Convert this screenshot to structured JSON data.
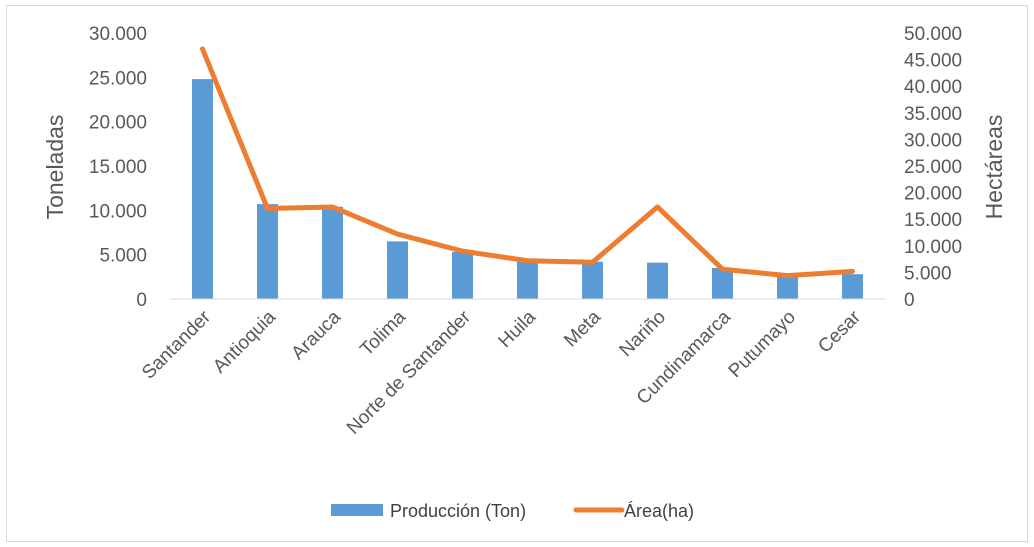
{
  "chart_data": {
    "type": "bar",
    "title": "",
    "categories": [
      "Santander",
      "Antioquia",
      "Arauca",
      "Tolima",
      "Norte de Santander",
      "Huila",
      "Meta",
      "Nariño",
      "Cundinamarca",
      "Putumayo",
      "Cesar"
    ],
    "series": [
      {
        "name": "Producción (Ton)",
        "type": "bar",
        "axis": "left",
        "color": "#5b9bd5",
        "values": [
          24800,
          10700,
          10400,
          6500,
          5300,
          4400,
          4200,
          4100,
          3500,
          2700,
          2800
        ]
      },
      {
        "name": "Área(ha)",
        "type": "line",
        "axis": "right",
        "color": "#ed7d31",
        "values": [
          47000,
          17000,
          17300,
          12200,
          9000,
          7200,
          6900,
          17300,
          5600,
          4400,
          5200
        ]
      }
    ],
    "y_left": {
      "label": "Toneladas",
      "ylim": [
        0,
        30000
      ],
      "ticks": [
        0,
        5000,
        10000,
        15000,
        20000,
        25000,
        30000
      ],
      "tick_labels": [
        "0",
        "5.000",
        "10.000",
        "15.000",
        "20.000",
        "25.000",
        "30.000"
      ]
    },
    "y_right": {
      "label": "Hectáreas",
      "ylim": [
        0,
        50000
      ],
      "ticks": [
        0,
        5000,
        10000,
        15000,
        20000,
        25000,
        30000,
        35000,
        40000,
        45000,
        50000
      ],
      "tick_labels": [
        "0",
        "5.000",
        "10.000",
        "15.000",
        "20.000",
        "25.000",
        "30.000",
        "35.000",
        "40.000",
        "45.000",
        "50.000"
      ]
    },
    "xlabel": "",
    "grid": false,
    "legend_position": "bottom"
  }
}
